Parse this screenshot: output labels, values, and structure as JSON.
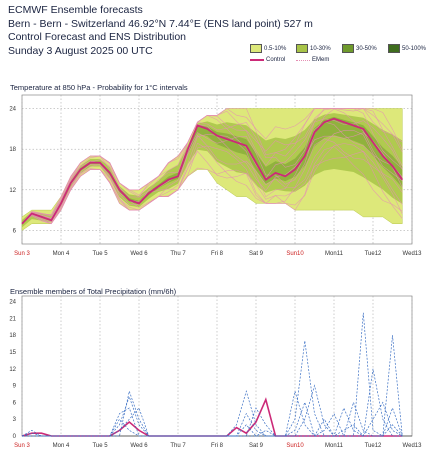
{
  "header": {
    "line1": "ECMWF Ensemble forecasts",
    "line2": "Bern - Bern - Switzerland 46.92°N 7.44°E (ENS land point) 527 m",
    "line3": "Control Forecast and ENS Distribution",
    "line4": "Sunday 3 August 2025 00 UTC"
  },
  "legend": {
    "bands": [
      {
        "label": "0.5-10%",
        "color": "#dde87a"
      },
      {
        "label": "10-30%",
        "color": "#a8c448"
      },
      {
        "label": "30-50%",
        "color": "#6f9a2c"
      },
      {
        "label": "50-100%",
        "color": "#3f6d1e"
      }
    ],
    "control_label": "Control",
    "emem_label": "EMem",
    "control_color": "#cc2a78",
    "emem_color": "#e58fb4"
  },
  "chart_data": [
    {
      "type": "area",
      "title": "Temperature at 850 hPa - Probability for 1°C intervals",
      "x_ticks": [
        "Sun 3",
        "Mon 4",
        "Tue 5",
        "Wed 6",
        "Thu 7",
        "Fri 8",
        "Sat 9",
        "Sun10",
        "Mon11",
        "Tue12",
        "Wed13"
      ],
      "sunday_ticks": [
        "Sun 3",
        "Sun10"
      ],
      "y_ticks": [
        6,
        12,
        18,
        24
      ],
      "ylim": [
        4,
        26
      ],
      "x_days": [
        0,
        0.25,
        0.5,
        0.75,
        1,
        1.25,
        1.5,
        1.75,
        2,
        2.25,
        2.5,
        2.75,
        3,
        3.25,
        3.5,
        3.75,
        4,
        4.25,
        4.5,
        4.75,
        5,
        5.25,
        5.5,
        5.75,
        6,
        6.25,
        6.5,
        6.75,
        7,
        7.25,
        7.5,
        7.75,
        8,
        8.25,
        8.5,
        8.75,
        9,
        9.25,
        9.5,
        9.75
      ],
      "series": [
        {
          "name": "Control",
          "values": [
            7,
            8.5,
            8,
            7.5,
            10,
            13,
            15,
            16,
            16,
            14.5,
            12,
            10.5,
            10,
            11.5,
            12.5,
            13.5,
            14,
            18,
            21.5,
            21,
            20,
            19.5,
            19,
            18.5,
            16,
            13.5,
            14.5,
            14,
            15,
            17,
            20.5,
            22,
            22.5,
            22,
            21.5,
            21,
            19,
            17,
            15.5,
            13.5
          ]
        },
        {
          "name": "band_min",
          "values": [
            6,
            7,
            7,
            7,
            9,
            12,
            14,
            15,
            15,
            13,
            10,
            9,
            9,
            10,
            11,
            11,
            12,
            14,
            15,
            15,
            13,
            12,
            11,
            11,
            10,
            10,
            10,
            10,
            9,
            9,
            9,
            9,
            9,
            9,
            9,
            8,
            8,
            8,
            7,
            7
          ]
        },
        {
          "name": "band_max",
          "values": [
            8,
            9,
            9,
            9,
            11,
            14,
            16,
            17,
            17,
            16,
            13,
            12,
            12,
            13,
            14,
            16,
            17,
            19,
            22,
            23,
            23,
            24,
            24,
            24,
            24,
            24,
            24,
            24,
            24,
            24,
            24,
            24,
            24,
            24,
            24,
            24,
            24,
            24,
            24,
            24
          ]
        }
      ]
    },
    {
      "type": "line",
      "title": "Ensemble members of Total Precipitation (mm/6h)",
      "x_ticks": [
        "Sun 3",
        "Mon 4",
        "Tue 5",
        "Wed 6",
        "Thu 7",
        "Fri 8",
        "Sat 9",
        "Sun10",
        "Mon11",
        "Tue12",
        "Wed13"
      ],
      "sunday_ticks": [
        "Sun 3",
        "Sun10"
      ],
      "y_ticks": [
        0,
        3,
        6,
        9,
        12,
        15,
        18,
        21,
        24
      ],
      "ylim": [
        0,
        25
      ],
      "x_days": [
        0,
        0.25,
        0.5,
        0.75,
        1,
        1.25,
        1.5,
        1.75,
        2,
        2.25,
        2.5,
        2.75,
        3,
        3.25,
        3.5,
        3.75,
        4,
        4.25,
        4.5,
        4.75,
        5,
        5.25,
        5.5,
        5.75,
        6,
        6.25,
        6.5,
        6.75,
        7,
        7.25,
        7.5,
        7.75,
        8,
        8.25,
        8.5,
        8.75,
        9,
        9.25,
        9.5,
        9.75
      ],
      "series": [
        {
          "name": "Control",
          "values": [
            0,
            0.5,
            0.5,
            0,
            0,
            0,
            0,
            0,
            0,
            0,
            1,
            2.5,
            1,
            0,
            0,
            0,
            0,
            0,
            0,
            0,
            0,
            0,
            1.5,
            0.5,
            2.5,
            6.5,
            0,
            0,
            0,
            0,
            0,
            0,
            0,
            0,
            0,
            0,
            0,
            0,
            0,
            0
          ]
        },
        {
          "name": "m1",
          "values": [
            0,
            1,
            0,
            0,
            0,
            0,
            0,
            0,
            0,
            0,
            2,
            7,
            2,
            0,
            0,
            0,
            0,
            0,
            0,
            0,
            0,
            0,
            0,
            4,
            1,
            0,
            0,
            0,
            3,
            17,
            4,
            0,
            0,
            1,
            2,
            0,
            3,
            6,
            1,
            0
          ]
        },
        {
          "name": "m2",
          "values": [
            0,
            0.5,
            0,
            0,
            0,
            0,
            0,
            0,
            0,
            0,
            4,
            5,
            0,
            0,
            0,
            0,
            0,
            0,
            0,
            0,
            0,
            0,
            2,
            8,
            2,
            0,
            0,
            0,
            0,
            3,
            9,
            2,
            0,
            0,
            0,
            22,
            1,
            0,
            2,
            0
          ]
        },
        {
          "name": "m3",
          "values": [
            0,
            0,
            0,
            0,
            0,
            0,
            0,
            0,
            0,
            0,
            0,
            8,
            3,
            0,
            0,
            0,
            0,
            0,
            0,
            0,
            0,
            0,
            0,
            0,
            5,
            2,
            0,
            0,
            8,
            2,
            0,
            1,
            4,
            0,
            0,
            0,
            0,
            0,
            18,
            0
          ]
        },
        {
          "name": "m4",
          "values": [
            0,
            0,
            0,
            0,
            0,
            0,
            0,
            0,
            0,
            0,
            1,
            3,
            5,
            0,
            0,
            0,
            0,
            0,
            0,
            0,
            0,
            0,
            0,
            2,
            0,
            0,
            0,
            0,
            1,
            6,
            0,
            0,
            0,
            5,
            1,
            0,
            12,
            3,
            0,
            0
          ]
        },
        {
          "name": "m5",
          "values": [
            0,
            0,
            0,
            0,
            0,
            0,
            0,
            0,
            0,
            0,
            3,
            1,
            0,
            0,
            0,
            0,
            0,
            0,
            0,
            0,
            0,
            0,
            0,
            0,
            0,
            1,
            0,
            0,
            0,
            0,
            0,
            3,
            0,
            0,
            6,
            1,
            0,
            0,
            5,
            0
          ]
        }
      ]
    }
  ]
}
